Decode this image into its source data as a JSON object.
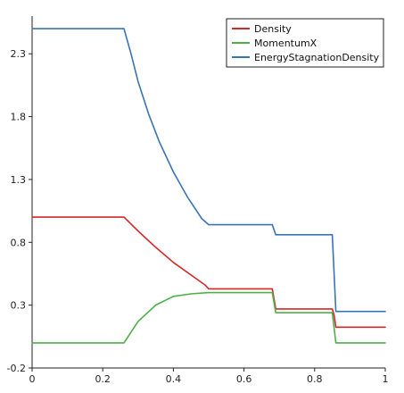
{
  "chart_data": {
    "type": "line",
    "title": "",
    "xlabel": "",
    "ylabel": "",
    "xlim": [
      0,
      1
    ],
    "ylim": [
      -0.2,
      2.6
    ],
    "xticks": [
      0,
      0.2,
      0.4,
      0.6,
      0.8,
      1
    ],
    "xtick_labels": [
      "0",
      "0.2",
      "0.4",
      "0.6",
      "0.8",
      "1"
    ],
    "yticks": [
      -0.2,
      0.3,
      0.8,
      1.3,
      1.8,
      2.3
    ],
    "ytick_labels": [
      "-0.2",
      "0.3",
      "0.8",
      "1.3",
      "1.8",
      "2.3"
    ],
    "grid": false,
    "legend_position": "top-right",
    "series": [
      {
        "name": "Density",
        "color": "#d62728",
        "x": [
          0,
          0.26,
          0.3,
          0.35,
          0.4,
          0.45,
          0.49,
          0.5,
          0.68,
          0.69,
          0.85,
          0.855,
          0.86,
          1.0
        ],
        "y": [
          1.0,
          1.0,
          0.89,
          0.76,
          0.64,
          0.54,
          0.46,
          0.43,
          0.43,
          0.27,
          0.27,
          0.22,
          0.125,
          0.125
        ]
      },
      {
        "name": "MomentumX",
        "color": "#4daf4a",
        "x": [
          0,
          0.26,
          0.3,
          0.35,
          0.4,
          0.45,
          0.5,
          0.68,
          0.69,
          0.85,
          0.86,
          1.0
        ],
        "y": [
          0.0,
          0.0,
          0.17,
          0.3,
          0.37,
          0.39,
          0.4,
          0.4,
          0.24,
          0.24,
          0.0,
          0.0
        ]
      },
      {
        "name": "EnergyStagnationDensity",
        "color": "#3a73b8",
        "x": [
          0,
          0.26,
          0.28,
          0.3,
          0.33,
          0.36,
          0.4,
          0.44,
          0.48,
          0.5,
          0.68,
          0.69,
          0.85,
          0.86,
          1.0
        ],
        "y": [
          2.5,
          2.5,
          2.3,
          2.08,
          1.82,
          1.6,
          1.36,
          1.16,
          0.99,
          0.94,
          0.94,
          0.86,
          0.86,
          0.25,
          0.25
        ]
      }
    ]
  }
}
